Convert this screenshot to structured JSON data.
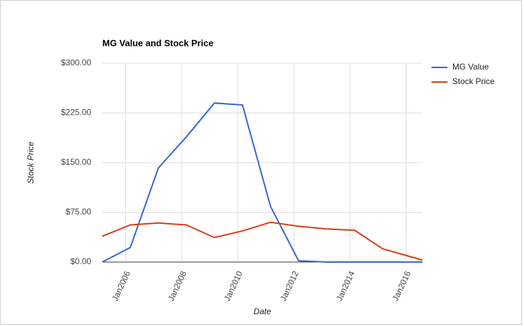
{
  "chart_data": {
    "type": "line",
    "title": "MG Value and Stock Price",
    "x_label": "Date",
    "y_label": "Stock Price",
    "x": [
      "2005-03",
      "2006-03",
      "2007-03",
      "2008-03",
      "2009-03",
      "2010-03",
      "2011-03",
      "2012-03",
      "2013-03",
      "2014-03",
      "2015-03",
      "2016-03",
      "2016-08"
    ],
    "series": [
      {
        "name": "MG Value",
        "color": "#3366cc",
        "values": [
          0,
          22,
          142,
          189,
          240,
          237,
          84,
          2,
          0,
          0,
          0,
          0,
          0
        ]
      },
      {
        "name": "Stock Price",
        "color": "#dc3912",
        "values": [
          39,
          56,
          59,
          56,
          37,
          47,
          60,
          54,
          50,
          48,
          20,
          8,
          3
        ]
      }
    ],
    "xlim": [
      "2005-03",
      "2016-08"
    ],
    "xticks": [
      {
        "value": "2006-01",
        "label": "Jan2006"
      },
      {
        "value": "2008-01",
        "label": "Jan2008"
      },
      {
        "value": "2010-01",
        "label": "Jan2010"
      },
      {
        "value": "2012-01",
        "label": "Jan2012"
      },
      {
        "value": "2014-01",
        "label": "Jan2014"
      },
      {
        "value": "2016-01",
        "label": "Jan2016"
      }
    ],
    "ylim": [
      0,
      300
    ],
    "yticks": [
      {
        "value": 0,
        "label": "$0.00"
      },
      {
        "value": 75,
        "label": "$75.00"
      },
      {
        "value": 150,
        "label": "$150.00"
      },
      {
        "value": 225,
        "label": "$225.00"
      },
      {
        "value": 300,
        "label": "$300.00"
      }
    ],
    "grid": true,
    "legend": "right"
  }
}
